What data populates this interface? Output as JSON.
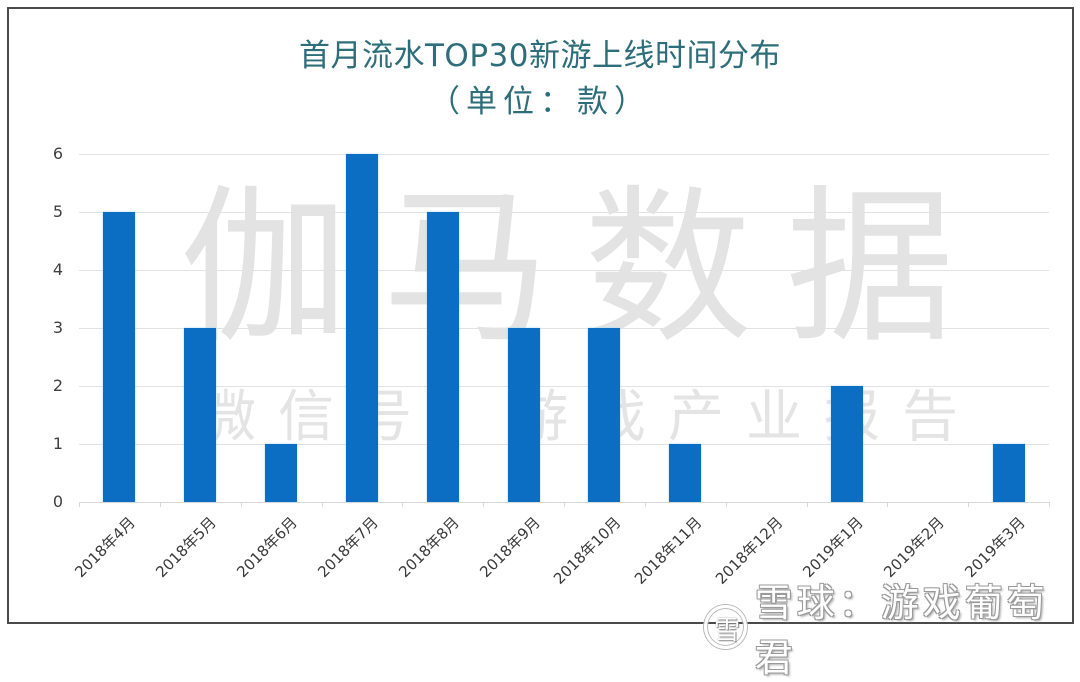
{
  "chart_data": {
    "type": "bar",
    "title": "首月流水TOP30新游上线时间分布",
    "subtitle": "（单位：款）",
    "categories": [
      "2018年4月",
      "2018年5月",
      "2018年6月",
      "2018年7月",
      "2018年8月",
      "2018年9月",
      "2018年10月",
      "2018年11月",
      "2018年12月",
      "2019年1月",
      "2019年2月",
      "2019年3月"
    ],
    "values": [
      5,
      3,
      1,
      6,
      5,
      3,
      3,
      1,
      0,
      2,
      0,
      1
    ],
    "xlabel": "",
    "ylabel": "",
    "ylim": [
      0,
      6
    ],
    "yticks": [
      "0",
      "1",
      "2",
      "3",
      "4",
      "5",
      "6"
    ],
    "grid": true,
    "legend": null,
    "bar_color": "#0b6ec2"
  },
  "watermarks": {
    "main": "伽马数据",
    "sub": "微信号：游戏产业报告",
    "corner_logo": "雪",
    "corner_text": "雪球：游戏葡萄君"
  },
  "colors": {
    "title": "#2e6e7a",
    "bar": "#0b6ec2",
    "grid": "#e2e2e2",
    "frame": "#4a4a4a"
  }
}
